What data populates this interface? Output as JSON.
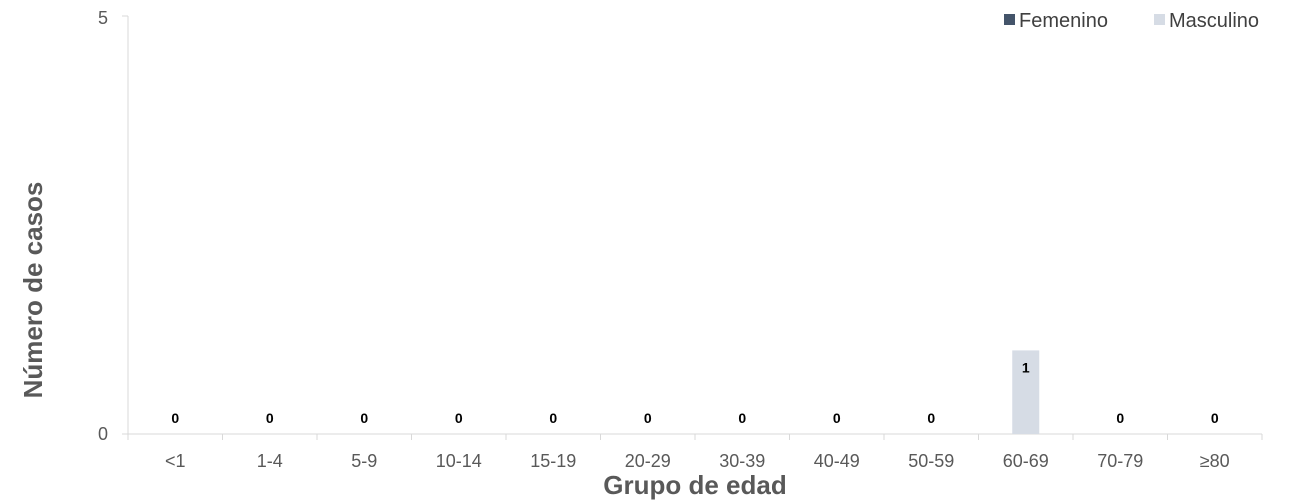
{
  "chart_data": {
    "type": "bar",
    "categories": [
      "<1",
      "1-4",
      "5-9",
      "10-14",
      "15-19",
      "20-29",
      "30-39",
      "40-49",
      "50-59",
      "60-69",
      "70-79",
      "≥80"
    ],
    "series": [
      {
        "name": "Femenino",
        "values": [
          0,
          0,
          0,
          0,
          0,
          0,
          0,
          0,
          0,
          0,
          0,
          0
        ],
        "color": "#44546a"
      },
      {
        "name": "Masculino",
        "values": [
          0,
          0,
          0,
          0,
          0,
          0,
          0,
          0,
          0,
          1,
          0,
          0
        ],
        "color": "#d6dce5"
      }
    ],
    "data_labels": [
      "0",
      "0",
      "0",
      "0",
      "0",
      "0",
      "0",
      "0",
      "0",
      "1",
      "0",
      "0"
    ],
    "xlabel": "Grupo de edad",
    "ylabel": "Número de casos",
    "ylim": [
      0,
      5
    ],
    "yticks": [
      "0",
      "5"
    ],
    "grid": false,
    "legend_position": "top-right",
    "axis_color": "#d9d9d9"
  }
}
